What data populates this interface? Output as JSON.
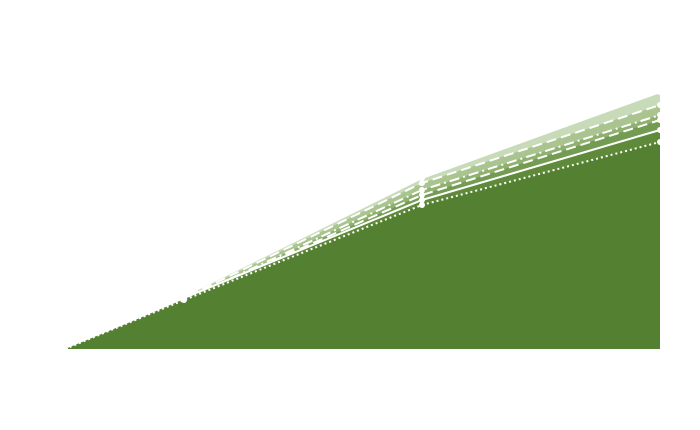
{
  "chart_data": {
    "type": "area",
    "x": [
      0,
      1,
      3,
      5
    ],
    "xlim": [
      0,
      5
    ],
    "ylim": [
      0,
      300
    ],
    "series": [
      {
        "color": "#c8dbb8",
        "dash": "solid",
        "values": [
          0,
          53,
          171,
          257
        ]
      },
      {
        "color": "#a9c48f",
        "dash": "dashed",
        "values": [
          0,
          51,
          166,
          244
        ]
      },
      {
        "color": "#8fb06f",
        "dash": "dashdot",
        "values": [
          0,
          49,
          159,
          234
        ]
      },
      {
        "color": "#739c52",
        "dash": "dashed",
        "values": [
          0,
          49,
          154,
          229
        ]
      },
      {
        "color": "#5f8a3a",
        "dash": "solid",
        "values": [
          0,
          51,
          149,
          219
        ]
      },
      {
        "color": "#548032",
        "dash": "dotted",
        "values": [
          0,
          49,
          144,
          207
        ]
      }
    ]
  }
}
